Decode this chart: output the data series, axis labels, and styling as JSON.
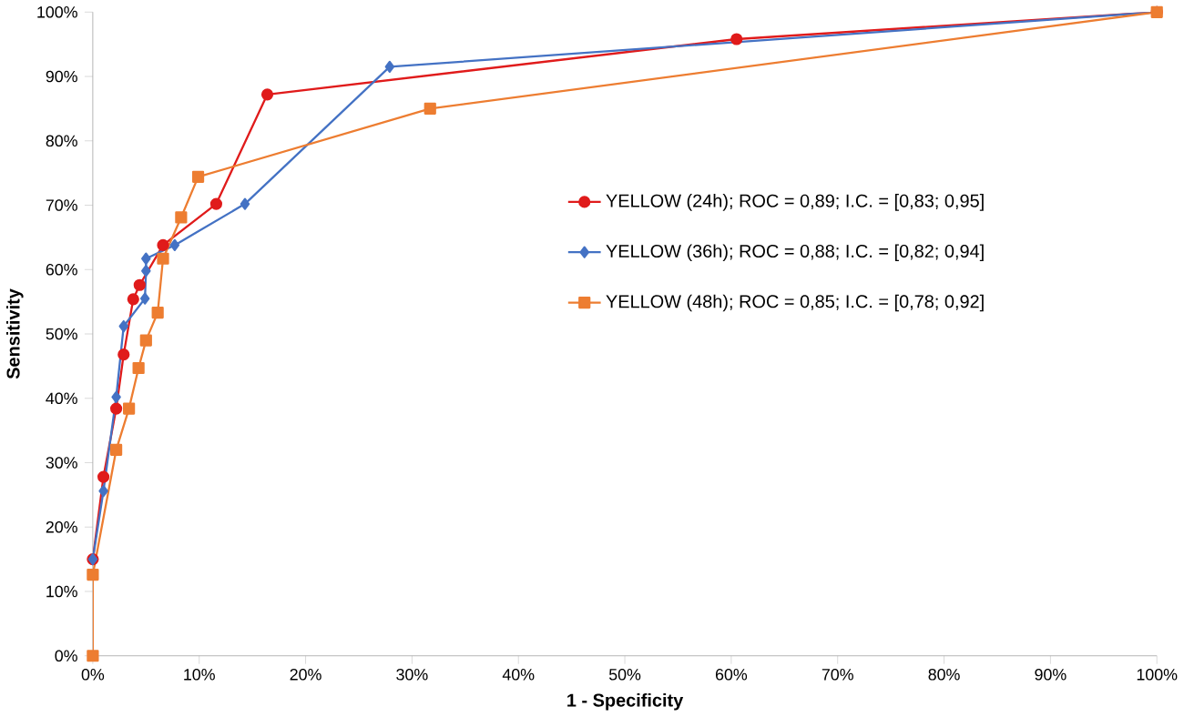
{
  "chart_data": {
    "type": "line",
    "xlabel": "1 - Specificity",
    "ylabel": "Sensitivity",
    "xlim": [
      0,
      100
    ],
    "ylim": [
      0,
      100
    ],
    "xticks": [
      {
        "value": 0,
        "label": "0%"
      },
      {
        "value": 10,
        "label": "10%"
      },
      {
        "value": 20,
        "label": "20%"
      },
      {
        "value": 30,
        "label": "30%"
      },
      {
        "value": 40,
        "label": "40%"
      },
      {
        "value": 50,
        "label": "50%"
      },
      {
        "value": 60,
        "label": "60%"
      },
      {
        "value": 70,
        "label": "70%"
      },
      {
        "value": 80,
        "label": "80%"
      },
      {
        "value": 90,
        "label": "90%"
      },
      {
        "value": 100,
        "label": "100%"
      }
    ],
    "yticks": [
      {
        "value": 0,
        "label": "0%"
      },
      {
        "value": 10,
        "label": "10%"
      },
      {
        "value": 20,
        "label": "20%"
      },
      {
        "value": 30,
        "label": "30%"
      },
      {
        "value": 40,
        "label": "40%"
      },
      {
        "value": 50,
        "label": "50%"
      },
      {
        "value": 60,
        "label": "60%"
      },
      {
        "value": 70,
        "label": "70%"
      },
      {
        "value": 80,
        "label": "80%"
      },
      {
        "value": 90,
        "label": "90%"
      },
      {
        "value": 100,
        "label": "100%"
      }
    ],
    "legend": "right",
    "grid": false,
    "series": [
      {
        "name": "YELLOW (24h); ROC = 0,89; I.C. = [0,83; 0,95]",
        "color": "#e01b1b",
        "marker": "circle",
        "x": [
          0,
          1.0,
          2.2,
          2.9,
          3.8,
          4.4,
          6.6,
          11.6,
          16.4,
          60.5,
          100
        ],
        "values": [
          15,
          27.8,
          38.4,
          46.8,
          55.4,
          57.6,
          63.8,
          70.2,
          87.2,
          95.8,
          100
        ]
      },
      {
        "name": "YELLOW (36h);  ROC = 0,88; I.C. = [0,82; 0,94]",
        "color": "#4472c4",
        "marker": "diamond",
        "x": [
          0,
          1.0,
          2.2,
          2.9,
          4.9,
          5.0,
          5.0,
          7.7,
          14.3,
          27.9,
          100
        ],
        "values": [
          15,
          25.6,
          40.2,
          51.2,
          55.5,
          59.8,
          61.7,
          63.8,
          70.2,
          91.5,
          100
        ]
      },
      {
        "name": "YELLOW (48h);  ROC = 0,85; I.C. = [0,78; 0,92]",
        "color": "#ed7d31",
        "marker": "square",
        "x": [
          0,
          0,
          2.2,
          3.4,
          4.3,
          5.0,
          6.1,
          6.6,
          8.3,
          9.9,
          31.7,
          100
        ],
        "values": [
          0,
          12.6,
          32.0,
          38.4,
          44.7,
          49.0,
          53.3,
          61.7,
          68.1,
          74.4,
          85.0,
          100
        ]
      }
    ]
  }
}
